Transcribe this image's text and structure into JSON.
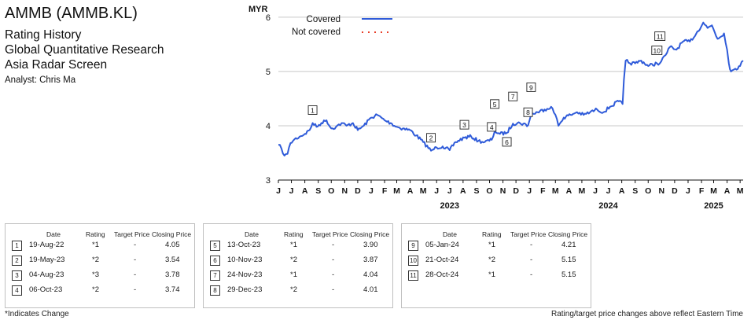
{
  "header": {
    "title": "AMMB (AMMB.KL)",
    "subtitles": [
      "Rating History",
      "Global Quantitative Research",
      "Asia Radar Screen"
    ],
    "analyst": "Analyst: Chris Ma"
  },
  "chart_data": {
    "type": "line",
    "ylabel": "MYR",
    "ylim": [
      3,
      6.2
    ],
    "yticks": [
      3,
      4,
      5,
      6
    ],
    "x_range": [
      "2022-06-01",
      "2025-05-08"
    ],
    "month_labels": [
      "J",
      "J",
      "A",
      "S",
      "O",
      "N",
      "D",
      "J",
      "F",
      "M",
      "A",
      "M",
      "J",
      "J",
      "A",
      "S",
      "O",
      "N",
      "D",
      "J",
      "F",
      "M",
      "A",
      "M",
      "J",
      "J",
      "A",
      "S",
      "O",
      "N",
      "D",
      "J",
      "F",
      "M",
      "A",
      "M"
    ],
    "month_dates": [
      "2022-06-01",
      "2022-07-01",
      "2022-08-01",
      "2022-09-01",
      "2022-10-01",
      "2022-11-01",
      "2022-12-01",
      "2023-01-01",
      "2023-02-01",
      "2023-03-01",
      "2023-04-01",
      "2023-05-01",
      "2023-06-01",
      "2023-07-01",
      "2023-08-01",
      "2023-09-01",
      "2023-10-01",
      "2023-11-01",
      "2023-12-01",
      "2024-01-01",
      "2024-02-01",
      "2024-03-01",
      "2024-04-01",
      "2024-05-01",
      "2024-06-01",
      "2024-07-01",
      "2024-08-01",
      "2024-09-01",
      "2024-10-01",
      "2024-11-01",
      "2024-12-01",
      "2025-01-01",
      "2025-02-01",
      "2025-03-01",
      "2025-04-01",
      "2025-05-01"
    ],
    "year_labels": [
      {
        "label": "2023",
        "date": "2023-07-01"
      },
      {
        "label": "2024",
        "date": "2024-07-01"
      },
      {
        "label": "2025",
        "date": "2025-03-01"
      }
    ],
    "legend": [
      {
        "name": "Covered",
        "color": "#2f5bd9",
        "style": "solid"
      },
      {
        "name": "Not covered",
        "color": "#e8402a",
        "style": "dotted"
      }
    ],
    "legend_position": "top-left",
    "series": [
      {
        "name": "Covered",
        "color": "#2f5bd9",
        "points": [
          [
            "2022-06-01",
            3.65
          ],
          [
            "2022-06-08",
            3.58
          ],
          [
            "2022-06-15",
            3.45
          ],
          [
            "2022-06-22",
            3.48
          ],
          [
            "2022-06-29",
            3.68
          ],
          [
            "2022-07-08",
            3.75
          ],
          [
            "2022-07-20",
            3.8
          ],
          [
            "2022-08-01",
            3.85
          ],
          [
            "2022-08-12",
            3.92
          ],
          [
            "2022-08-19",
            4.05
          ],
          [
            "2022-08-28",
            3.98
          ],
          [
            "2022-09-08",
            4.05
          ],
          [
            "2022-09-20",
            4.1
          ],
          [
            "2022-10-01",
            3.95
          ],
          [
            "2022-10-12",
            3.98
          ],
          [
            "2022-10-25",
            4.05
          ],
          [
            "2022-11-05",
            4.0
          ],
          [
            "2022-11-20",
            4.05
          ],
          [
            "2022-12-01",
            3.92
          ],
          [
            "2022-12-15",
            4.0
          ],
          [
            "2023-01-01",
            4.15
          ],
          [
            "2023-01-15",
            4.2
          ],
          [
            "2023-02-01",
            4.1
          ],
          [
            "2023-02-15",
            4.05
          ],
          [
            "2023-03-01",
            3.98
          ],
          [
            "2023-03-15",
            3.95
          ],
          [
            "2023-04-01",
            3.92
          ],
          [
            "2023-04-15",
            3.82
          ],
          [
            "2023-05-01",
            3.7
          ],
          [
            "2023-05-19",
            3.54
          ],
          [
            "2023-06-01",
            3.6
          ],
          [
            "2023-06-15",
            3.62
          ],
          [
            "2023-07-01",
            3.55
          ],
          [
            "2023-07-15",
            3.7
          ],
          [
            "2023-08-04",
            3.78
          ],
          [
            "2023-08-20",
            3.8
          ],
          [
            "2023-09-05",
            3.72
          ],
          [
            "2023-09-20",
            3.7
          ],
          [
            "2023-10-06",
            3.74
          ],
          [
            "2023-10-13",
            3.9
          ],
          [
            "2023-10-25",
            3.85
          ],
          [
            "2023-11-10",
            3.87
          ],
          [
            "2023-11-24",
            4.04
          ],
          [
            "2023-12-10",
            4.05
          ],
          [
            "2023-12-29",
            4.01
          ],
          [
            "2024-01-05",
            4.21
          ],
          [
            "2024-01-20",
            4.25
          ],
          [
            "2024-02-05",
            4.3
          ],
          [
            "2024-02-20",
            4.35
          ],
          [
            "2024-03-01",
            4.2
          ],
          [
            "2024-03-08",
            4.0
          ],
          [
            "2024-03-20",
            4.15
          ],
          [
            "2024-04-05",
            4.2
          ],
          [
            "2024-04-20",
            4.25
          ],
          [
            "2024-05-05",
            4.2
          ],
          [
            "2024-05-20",
            4.25
          ],
          [
            "2024-06-05",
            4.3
          ],
          [
            "2024-06-20",
            4.25
          ],
          [
            "2024-07-05",
            4.35
          ],
          [
            "2024-07-25",
            4.45
          ],
          [
            "2024-08-03",
            4.4
          ],
          [
            "2024-08-06",
            4.85
          ],
          [
            "2024-08-10",
            5.2
          ],
          [
            "2024-08-20",
            5.15
          ],
          [
            "2024-09-01",
            5.15
          ],
          [
            "2024-09-15",
            5.2
          ],
          [
            "2024-10-01",
            5.1
          ],
          [
            "2024-10-21",
            5.15
          ],
          [
            "2024-10-28",
            5.15
          ],
          [
            "2024-11-10",
            5.3
          ],
          [
            "2024-11-20",
            5.45
          ],
          [
            "2024-12-05",
            5.4
          ],
          [
            "2024-12-20",
            5.55
          ],
          [
            "2025-01-05",
            5.55
          ],
          [
            "2025-01-20",
            5.7
          ],
          [
            "2025-02-05",
            5.9
          ],
          [
            "2025-02-15",
            5.8
          ],
          [
            "2025-02-25",
            5.85
          ],
          [
            "2025-03-10",
            5.6
          ],
          [
            "2025-03-25",
            5.7
          ],
          [
            "2025-04-01",
            5.4
          ],
          [
            "2025-04-05",
            5.15
          ],
          [
            "2025-04-10",
            5.0
          ],
          [
            "2025-04-20",
            5.05
          ],
          [
            "2025-05-01",
            5.1
          ],
          [
            "2025-05-08",
            5.2
          ]
        ]
      }
    ],
    "markers": [
      {
        "label": "1",
        "date": "2022-08-19",
        "value": 4.05,
        "pos": "above"
      },
      {
        "label": "2",
        "date": "2023-05-19",
        "value": 3.54,
        "pos": "above"
      },
      {
        "label": "3",
        "date": "2023-08-04",
        "value": 3.78,
        "pos": "above"
      },
      {
        "label": "4",
        "date": "2023-10-06",
        "value": 3.74,
        "pos": "above"
      },
      {
        "label": "5",
        "date": "2023-10-13",
        "value": 3.9,
        "pos": "high"
      },
      {
        "label": "6",
        "date": "2023-11-10",
        "value": 3.87,
        "pos": "below"
      },
      {
        "label": "7",
        "date": "2023-11-24",
        "value": 4.04,
        "pos": "high"
      },
      {
        "label": "8",
        "date": "2023-12-29",
        "value": 4.01,
        "pos": "above"
      },
      {
        "label": "9",
        "date": "2024-01-05",
        "value": 4.21,
        "pos": "high"
      },
      {
        "label": "10",
        "date": "2024-10-21",
        "value": 5.15,
        "pos": "above"
      },
      {
        "label": "11",
        "date": "2024-10-28",
        "value": 5.15,
        "pos": "high"
      }
    ]
  },
  "tables": [
    {
      "headers": [
        "Date",
        "Rating",
        "Target Price",
        "Closing Price"
      ],
      "rows": [
        {
          "n": "1",
          "date": "19-Aug-22",
          "rating": "*1",
          "target": "-",
          "close": "4.05"
        },
        {
          "n": "2",
          "date": "19-May-23",
          "rating": "*2",
          "target": "-",
          "close": "3.54"
        },
        {
          "n": "3",
          "date": "04-Aug-23",
          "rating": "*3",
          "target": "-",
          "close": "3.78"
        },
        {
          "n": "4",
          "date": "06-Oct-23",
          "rating": "*2",
          "target": "-",
          "close": "3.74"
        }
      ]
    },
    {
      "headers": [
        "Date",
        "Rating",
        "Target Price",
        "Closing Price"
      ],
      "rows": [
        {
          "n": "5",
          "date": "13-Oct-23",
          "rating": "*1",
          "target": "-",
          "close": "3.90"
        },
        {
          "n": "6",
          "date": "10-Nov-23",
          "rating": "*2",
          "target": "-",
          "close": "3.87"
        },
        {
          "n": "7",
          "date": "24-Nov-23",
          "rating": "*1",
          "target": "-",
          "close": "4.04"
        },
        {
          "n": "8",
          "date": "29-Dec-23",
          "rating": "*2",
          "target": "-",
          "close": "4.01"
        }
      ]
    },
    {
      "headers": [
        "Date",
        "Rating",
        "Target Price",
        "Closing Price"
      ],
      "rows": [
        {
          "n": "9",
          "date": "05-Jan-24",
          "rating": "*1",
          "target": "-",
          "close": "4.21"
        },
        {
          "n": "10",
          "date": "21-Oct-24",
          "rating": "*2",
          "target": "-",
          "close": "5.15"
        },
        {
          "n": "11",
          "date": "28-Oct-24",
          "rating": "*1",
          "target": "-",
          "close": "5.15"
        }
      ]
    }
  ],
  "footer": {
    "left": "*Indicates Change",
    "right": "Rating/target price changes above reflect Eastern Time"
  }
}
